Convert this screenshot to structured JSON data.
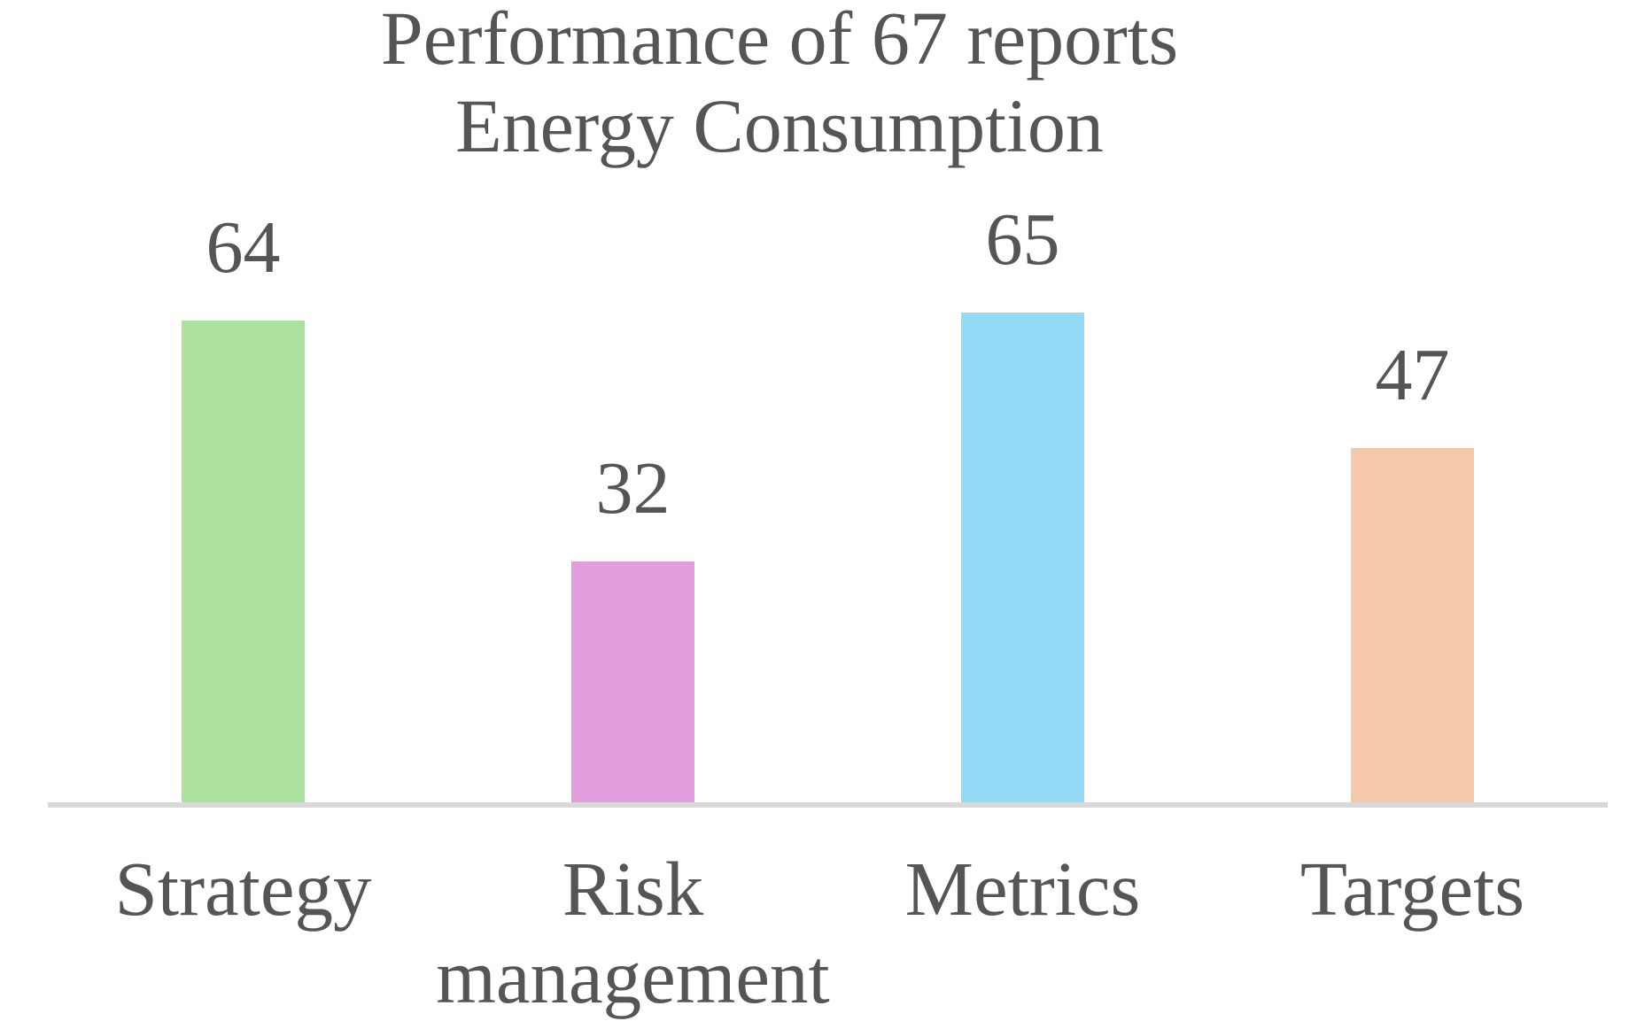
{
  "chart_data": {
    "type": "bar",
    "title": "Performance of 67 reports\nEnergy Consumption",
    "categories": [
      "Strategy",
      "Risk\nmanagement",
      "Metrics",
      "Targets"
    ],
    "values": [
      64,
      32,
      65,
      47
    ],
    "data_labels": [
      "64",
      "32",
      "65",
      "47"
    ],
    "bar_colors": [
      "#ACE1A0",
      "#E29EDC",
      "#93DAF6",
      "#F5C8AB"
    ],
    "title_color": "#555555",
    "label_color": "#555555",
    "axis_line_color": "#D8D8D8",
    "background_color": "#FFFFFF",
    "ylim": [
      0,
      106
    ],
    "grid": false,
    "legend": false,
    "y_axis_visible": false,
    "x_axis_line_visible": true
  }
}
